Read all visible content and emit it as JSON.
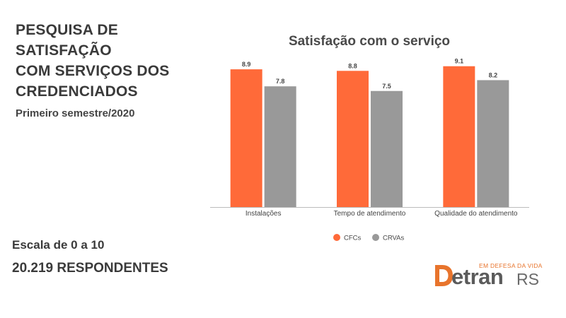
{
  "header": {
    "title_lines": [
      "PESQUISA DE",
      "SATISFAÇÃO",
      "COM SERVIÇOS DOS",
      "CREDENCIADOS"
    ],
    "subtitle": "Primeiro semestre/2020"
  },
  "footer": {
    "scale": "Escala de 0 a 10",
    "respondents": "20.219 RESPONDENTES"
  },
  "logo": {
    "tagline": "EM DEFESA DA VIDA",
    "word_rest": "etran",
    "suffix": "RS"
  },
  "chart_data": {
    "type": "bar",
    "title": "Satisfação com o serviço",
    "categories": [
      "Instalações",
      "Tempo de atendimento",
      "Qualidade do atendimento"
    ],
    "series": [
      {
        "name": "CFCs",
        "values": [
          8.9,
          8.8,
          9.1
        ],
        "color": "#ff6a39"
      },
      {
        "name": "CRVAs",
        "values": [
          7.8,
          7.5,
          8.2
        ],
        "color": "#999999"
      }
    ],
    "ylim": [
      0,
      10
    ],
    "grid": false,
    "legend": "bottom",
    "data_labels": true
  }
}
